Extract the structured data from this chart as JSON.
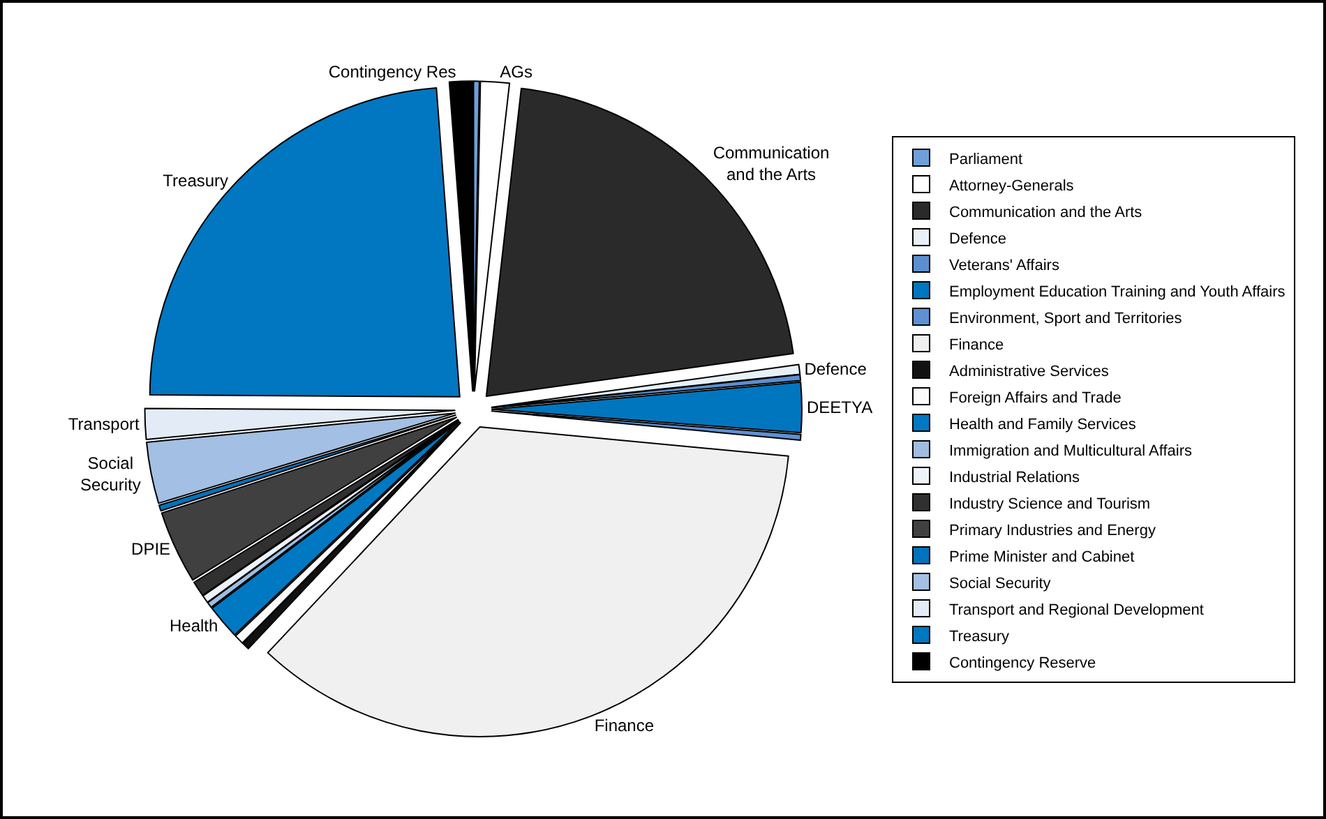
{
  "chart_data": {
    "type": "pie",
    "categories": [
      "Parliament",
      "Attorney-Generals",
      "Communication and the Arts",
      "Defence",
      "Veterans' Affairs",
      "Employment Education Training and Youth Affairs",
      "Environment, Sport and Territories",
      "Finance",
      "Administrative Services",
      "Foreign Affairs and Trade",
      "Health and Family Services",
      "Immigration and Multicultural Affairs",
      "Industrial Relations",
      "Industry Science and Tourism",
      "Primary Industries and Energy",
      "Prime Minister and Cabinet",
      "Social Security",
      "Transport and Regional Development",
      "Treasury",
      "Contingency Reserve"
    ],
    "values": [
      0.3,
      1.5,
      21,
      0.5,
      0.3,
      2.6,
      0.3,
      35.5,
      0.4,
      0.5,
      1.8,
      0.3,
      0.4,
      0.8,
      3.8,
      0.3,
      3.2,
      1.6,
      23.7,
      1.2
    ],
    "colors": [
      "#6f9fd8",
      "#ffffff",
      "#2a2a2a",
      "#e8f0f8",
      "#5b8fd0",
      "#0076bf",
      "#5d91d2",
      "#f0f0f0",
      "#111111",
      "#fbfbfb",
      "#0079c2",
      "#a0bce0",
      "#eef3fa",
      "#303030",
      "#404040",
      "#0073bc",
      "#a3bfe3",
      "#e3ecf6",
      "#0077c0",
      "#000000"
    ],
    "value_labels": [
      null,
      "AGs",
      "Communication\nand the Arts",
      "Defence",
      null,
      "DEETYA",
      null,
      "Finance",
      null,
      null,
      "Health",
      null,
      null,
      null,
      "DPIE",
      null,
      "Social\nSecurity",
      "Transport",
      "Treasury",
      "Contingency Res"
    ],
    "legend": "right"
  }
}
